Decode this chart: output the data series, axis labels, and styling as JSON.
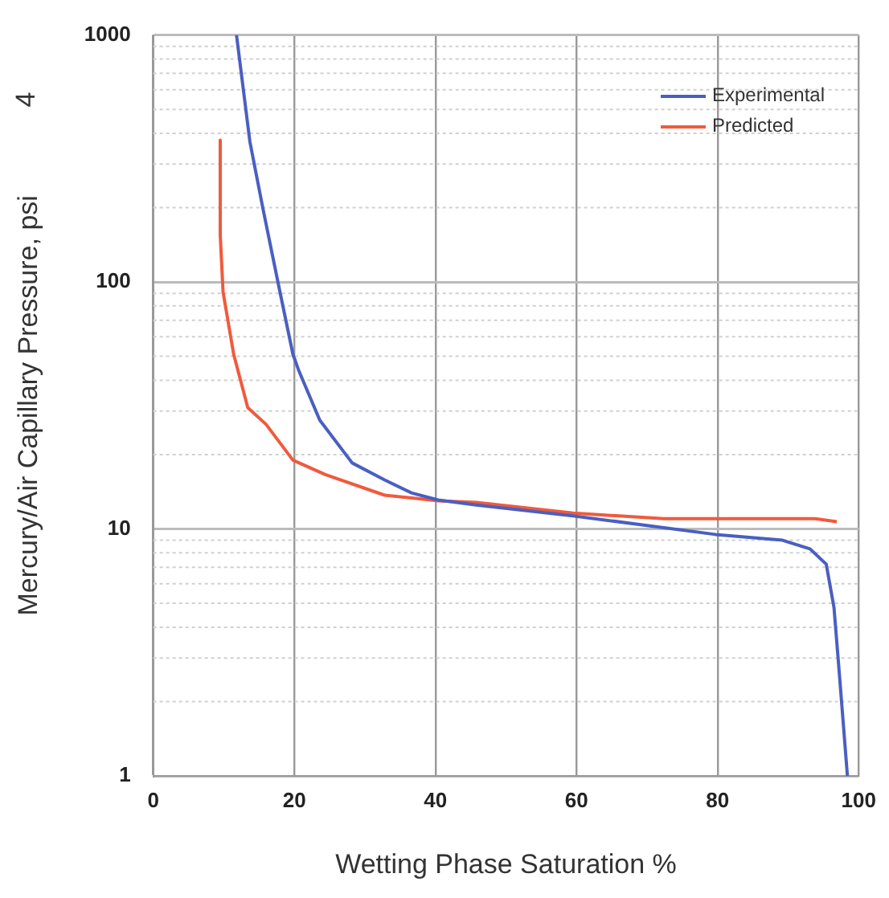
{
  "chart_data": {
    "type": "line",
    "xlabel": "Wetting Phase Saturation %",
    "ylabel": "Mercury/Air Capillary Pressure, psi",
    "annotations": [
      "4"
    ],
    "xlim": [
      0,
      100
    ],
    "xticks": [
      0,
      20,
      40,
      60,
      80,
      100
    ],
    "ylim": [
      1,
      1000
    ],
    "yticks": [
      1,
      10,
      100,
      1000
    ],
    "log": "y",
    "grid": true,
    "legend": "top right",
    "marker": "none",
    "line_style": "solid",
    "series": [
      {
        "name": "Experimental",
        "color": "#4a5fc1",
        "x": [
          11.8,
          13.7,
          15.6,
          17.9,
          19.8,
          20.6,
          23.6,
          28.2,
          32.8,
          36.6,
          40.4,
          45.8,
          59.5,
          79.7,
          89.2,
          93.1,
          95.4,
          96.5,
          97.3,
          98.4
        ],
        "values": [
          1000,
          370,
          195,
          93,
          51,
          44,
          27.6,
          18.5,
          15.8,
          14,
          13.1,
          12.5,
          11.3,
          9.5,
          9,
          8.3,
          7.2,
          4.8,
          2.5,
          1
        ]
      },
      {
        "name": "Predicted",
        "color": "#f05a3c",
        "x": [
          9.5,
          9.5,
          9.9,
          11.4,
          13.4,
          16,
          19.8,
          24.4,
          32.8,
          40.4,
          45.8,
          59.5,
          72.4,
          93.8,
          96.9
        ],
        "values": [
          375,
          155,
          91,
          51,
          31,
          26.5,
          19,
          16.6,
          13.7,
          13,
          12.8,
          11.6,
          11,
          11,
          10.7
        ]
      }
    ]
  }
}
